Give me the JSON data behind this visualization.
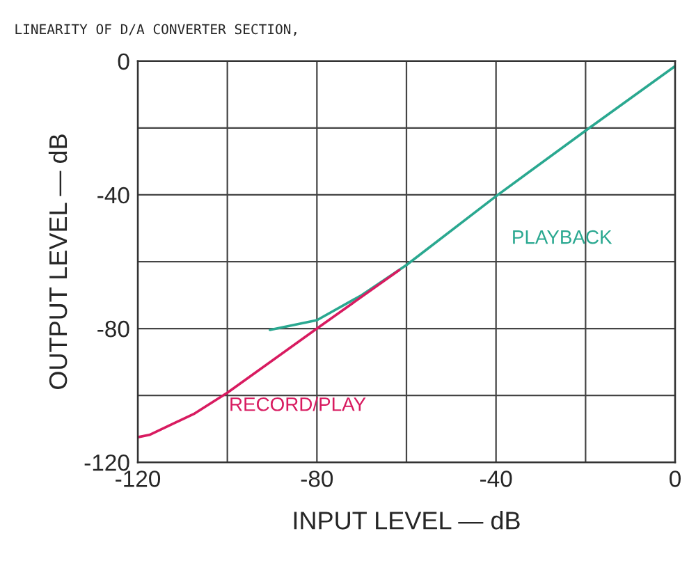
{
  "chart_data": {
    "type": "line",
    "title": "LINEARITY OF D/A CONVERTER SECTION,",
    "xlabel": "INPUT LEVEL — dB",
    "ylabel": "OUTPUT LEVEL — dB",
    "series": [
      {
        "name": "PLAYBACK",
        "color": "#2aa890",
        "x": [
          -90.5,
          -80,
          -70,
          -60,
          -40,
          -20,
          0
        ],
        "values": [
          -80.4,
          -77.5,
          -70,
          -61,
          -40.4,
          -20.8,
          -1.5
        ]
      },
      {
        "name": "RECORD/PLAY",
        "color": "#d81b60",
        "x": [
          -120,
          -117.4,
          -107.3,
          -100,
          -80,
          -61.6
        ],
        "values": [
          -112.5,
          -111.8,
          -105.4,
          -99.2,
          -80,
          -62.5
        ]
      }
    ],
    "xlim": [
      -120,
      0
    ],
    "ylim": [
      -120,
      0
    ],
    "xticks": [
      -120,
      {
        "value": -100,
        "label": null
      },
      -80,
      {
        "value": -60,
        "label": null
      },
      -40,
      {
        "value": -20,
        "label": null
      },
      0
    ],
    "yticks": [
      -120,
      {
        "value": -100,
        "label": null
      },
      -80,
      {
        "value": -60,
        "label": null
      },
      -40,
      {
        "value": -20,
        "label": null
      },
      0
    ],
    "grid": true,
    "legend": false,
    "marker": "none",
    "line_style": "solid"
  }
}
